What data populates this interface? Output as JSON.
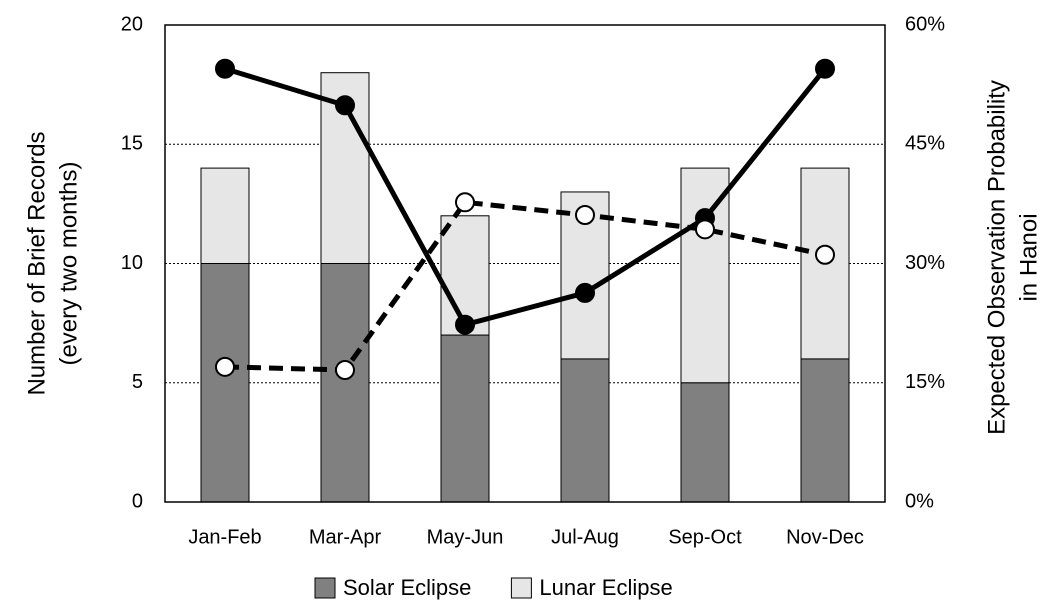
{
  "chart_data": {
    "type": "bar",
    "ylabel": [
      "Number of Brief Records",
      "(every two months)"
    ],
    "y2label": [
      "Expected Observation Probability",
      "in Hanoi"
    ],
    "categories": [
      "Jan-Feb",
      "Mar-Apr",
      "May-Jun",
      "Jul-Aug",
      "Sep-Oct",
      "Nov-Dec"
    ],
    "stacked": true,
    "series": [
      {
        "name": "Solar Eclipse",
        "type": "bar",
        "color": "#808080",
        "values": [
          10,
          10,
          7,
          6,
          5,
          6
        ]
      },
      {
        "name": "Lunar Eclipse",
        "type": "bar",
        "color": "#e6e6e6",
        "values": [
          4,
          8,
          5,
          7,
          9,
          8
        ]
      },
      {
        "type": "line",
        "axis": "y2",
        "color": "#000000",
        "dash": "solid",
        "marker_fill": "#000000",
        "values": [
          54.5,
          49.9,
          22.3,
          26.3,
          35.7,
          54.5
        ]
      },
      {
        "type": "line",
        "axis": "y2",
        "color": "#000000",
        "dash": "dashed",
        "marker_fill": "#ffffff",
        "values": [
          17.0,
          16.6,
          37.7,
          36.1,
          34.3,
          31.1
        ]
      }
    ],
    "ylim": [
      0,
      20
    ],
    "yticks": [
      0,
      5,
      10,
      15,
      20
    ],
    "y2lim": [
      0,
      60
    ],
    "y2ticks": [
      {
        "value": 0,
        "label": "0%"
      },
      {
        "value": 15,
        "label": "15%"
      },
      {
        "value": 30,
        "label": "30%"
      },
      {
        "value": 45,
        "label": "45%"
      },
      {
        "value": 60,
        "label": "60%"
      }
    ],
    "grid": true,
    "legend": "bottom"
  }
}
